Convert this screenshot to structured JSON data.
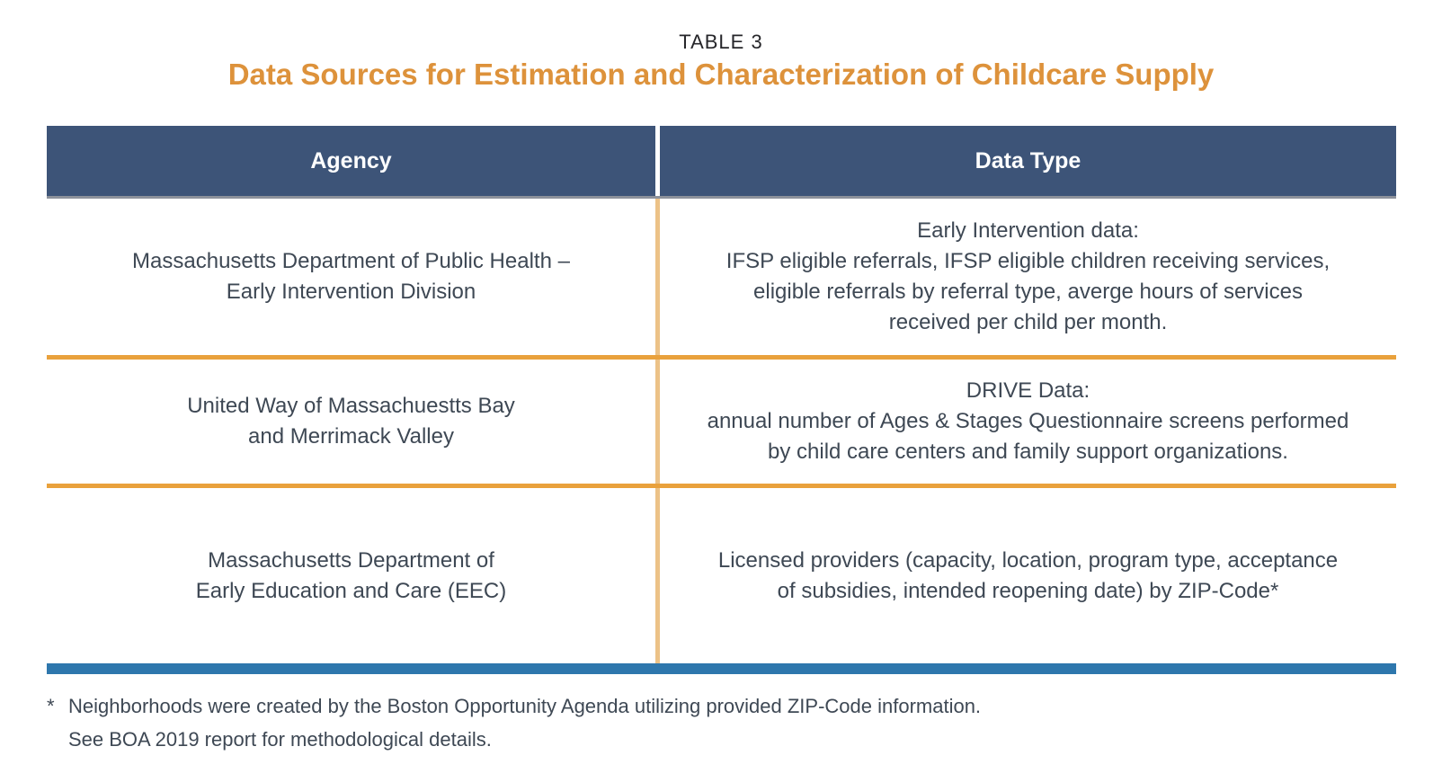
{
  "title": {
    "kicker": "TABLE 3",
    "heading": "Data Sources for Estimation and Characterization of Childcare Supply"
  },
  "table": {
    "headers": [
      "Agency",
      "Data Type"
    ],
    "rows": [
      {
        "agency": "Massachusetts Department of Public Health –\nEarly Intervention Division",
        "data_type": "Early Intervention data:\nIFSP eligible referrals, IFSP eligible children receiving services,\neligible referrals by referral type, averge hours of services\nreceived per child per month."
      },
      {
        "agency": "United Way of Massachuestts Bay\nand Merrimack Valley",
        "data_type": "DRIVE Data:\nannual number of Ages & Stages Questionnaire screens performed\nby child care centers and family support organizations."
      },
      {
        "agency": "Massachusetts Department of\nEarly Education and Care (EEC)",
        "data_type": "Licensed providers (capacity, location, program type, acceptance\nof subsidies, intended reopening date) by ZIP-Code*"
      }
    ]
  },
  "footnote": {
    "marker": "*",
    "line1": "Neighborhoods were created by the Boston Opportunity Agenda utilizing provided ZIP-Code information.",
    "line2": "See BOA 2019 report for methodological details."
  },
  "colors": {
    "header_bg": "#3d5478",
    "header_text": "#ffffff",
    "orange_rule": "#e9a13c",
    "orange_divider": "#ecc287",
    "blue_bar": "#2e77ad",
    "heading_orange": "#dd923b",
    "gray_rule": "#8d929b",
    "body_text": "#3e4854",
    "kicker_text": "#26262a"
  }
}
